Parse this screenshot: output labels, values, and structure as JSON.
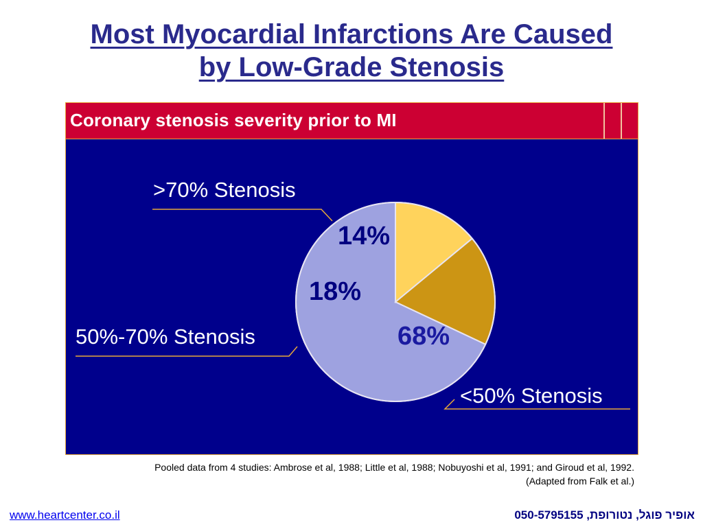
{
  "title": {
    "line1": "Most Myocardial Infarctions Are Caused",
    "line2": "by Low-Grade Stenosis"
  },
  "figure": {
    "banner_title": "Coronary stenosis severity prior to MI",
    "colors": {
      "background": "#00008c",
      "banner": "#cc0033",
      "border": "#e8a93a"
    }
  },
  "chart_data": {
    "type": "pie",
    "title": "Coronary stenosis severity prior to MI",
    "slices": [
      {
        "label": "<50% Stenosis",
        "value": 68,
        "value_label": "68%",
        "color": "#9ea2e0",
        "text_color": "#1a1aa0"
      },
      {
        "label": "50%-70% Stenosis",
        "value": 18,
        "value_label": "18%",
        "color": "#cc9514",
        "text_color": "#000080"
      },
      {
        "label": ">70% Stenosis",
        "value": 14,
        "value_label": "14%",
        "color": "#ffd35c",
        "text_color": "#000080"
      }
    ]
  },
  "caption": {
    "line1": "Pooled data from 4 studies: Ambrose et al, 1988; Little et al, 1988; Nobuyoshi et al, 1991; and Giroud et al, 1992.",
    "line2": "(Adapted from Falk et al.)"
  },
  "footer": {
    "link": "www.heartcenter.co.il",
    "contact": "אופיר פוגל, נטורופת, 050-5795155"
  }
}
